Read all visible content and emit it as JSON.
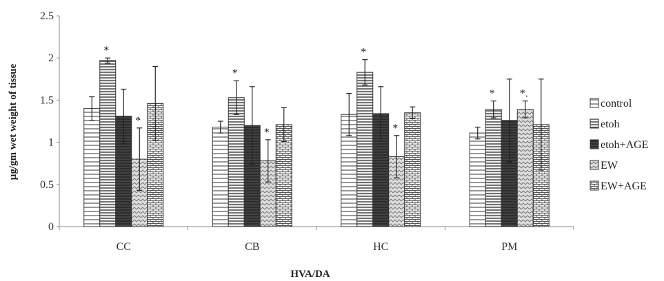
{
  "chart_data": {
    "type": "bar",
    "title": "",
    "xlabel": "HVA/DA",
    "ylabel": "µg/gm wet weight of tissue",
    "ylim": [
      0,
      2.5
    ],
    "yticks": [
      "0",
      "0.5",
      "1",
      "1.5",
      "2",
      "2.5"
    ],
    "categories": [
      "CC",
      "CB",
      "HC",
      "PM"
    ],
    "grid": false,
    "legend_position": "right",
    "series": [
      {
        "name": "control",
        "pattern": "hlines",
        "values": [
          1.4,
          1.18,
          1.33,
          1.11
        ],
        "errors": [
          0.14,
          0.07,
          0.25,
          0.07
        ],
        "sig": [
          "",
          "",
          "",
          ""
        ]
      },
      {
        "name": "etoh",
        "pattern": "hdense",
        "values": [
          1.97,
          1.53,
          1.83,
          1.39
        ],
        "errors": [
          0.03,
          0.2,
          0.15,
          0.1
        ],
        "sig": [
          "*",
          "*",
          "*",
          "*"
        ]
      },
      {
        "name": "etoh+AGE",
        "pattern": "dark",
        "values": [
          1.31,
          1.2,
          1.34,
          1.26
        ],
        "errors": [
          0.32,
          0.46,
          0.32,
          0.49
        ],
        "sig": [
          "",
          "",
          "",
          ""
        ]
      },
      {
        "name": "EW",
        "pattern": "zigzag",
        "values": [
          0.8,
          0.78,
          0.83,
          1.39
        ],
        "errors": [
          0.37,
          0.25,
          0.25,
          0.1
        ],
        "sig": [
          "*",
          "*",
          "*",
          "*."
        ]
      },
      {
        "name": "EW+AGE",
        "pattern": "brick",
        "values": [
          1.46,
          1.21,
          1.35,
          1.21
        ],
        "errors": [
          0.44,
          0.2,
          0.07,
          0.54
        ],
        "sig": [
          "",
          "",
          "",
          ""
        ]
      }
    ]
  }
}
